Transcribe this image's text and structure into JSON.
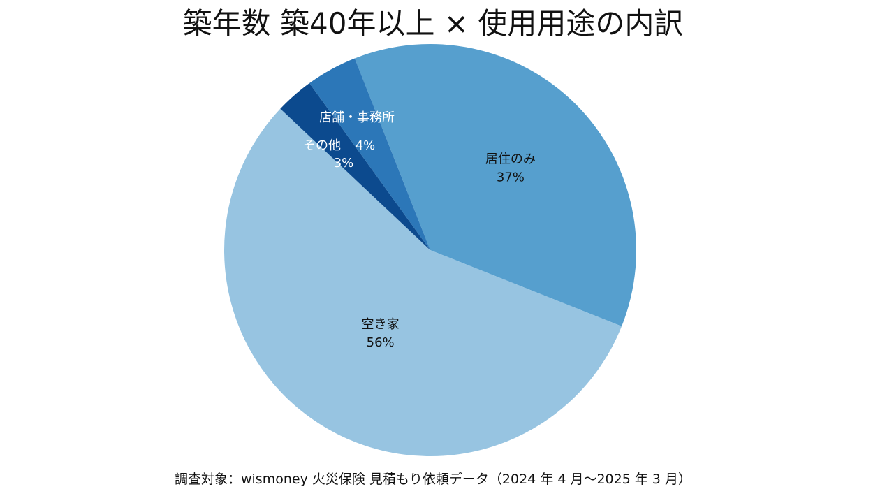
{
  "chart_data": {
    "type": "pie",
    "title": "築年数 築40年以上 × 使用用途の内訳",
    "slices": [
      {
        "name": "居住のみ",
        "value": 37,
        "value_label": "37%",
        "color": "#569fce",
        "label_color": "#111111"
      },
      {
        "name": "空き家",
        "value": 56,
        "value_label": "56%",
        "color": "#97c4e1",
        "label_color": "#111111"
      },
      {
        "name": "その他",
        "value": 3,
        "value_label": "3%",
        "color": "#0c4a8e",
        "label_color": "#ffffff"
      },
      {
        "name": "店舗・事務所",
        "value": 4,
        "value_label": "4%",
        "color": "#2c77b8",
        "label_color": "#ffffff"
      }
    ],
    "start_angle_deg": 0,
    "direction": "clockwise"
  },
  "footer": {
    "note": "調査対象：wismoney 火災保険 見積もり依頼データ（2024 年 4 月〜2025 年 3 月）"
  }
}
